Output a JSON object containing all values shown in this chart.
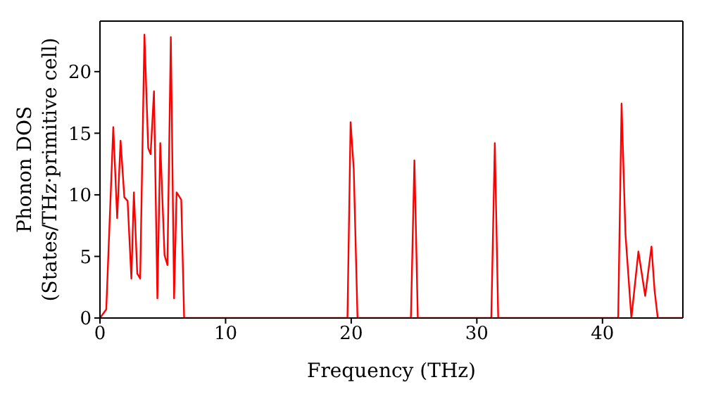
{
  "chart_data": {
    "type": "line",
    "xlabel": "Frequency (THz)",
    "ylabel": "Phonon DOS\n(States/THz·primitive cell)",
    "xlim": [
      0,
      46.4
    ],
    "ylim": [
      0,
      24.1
    ],
    "xticks": [
      0,
      10,
      20,
      30,
      40
    ],
    "yticks": [
      0,
      5,
      10,
      15,
      20
    ],
    "marker": "none",
    "line_style": "solid",
    "series": [
      {
        "color": "#ff0000",
        "x": [
          0,
          0.5,
          1.06,
          1.37,
          1.64,
          1.94,
          2.2,
          2.5,
          2.7,
          2.97,
          3.2,
          3.54,
          3.84,
          4.03,
          4.3,
          4.57,
          4.8,
          5.14,
          5.37,
          5.64,
          5.9,
          6.1,
          6.47,
          6.7,
          19.7,
          19.95,
          20.2,
          20.5,
          24.75,
          25.03,
          25.3,
          31.15,
          31.43,
          31.7,
          41.25,
          41.52,
          41.83,
          42.3,
          42.86,
          43.4,
          43.9,
          44.15,
          44.4,
          46.4
        ],
        "values": [
          0,
          0.7,
          15.5,
          8.1,
          14.4,
          9.8,
          9.5,
          3.2,
          10.2,
          3.6,
          3.2,
          23.0,
          13.8,
          13.3,
          18.4,
          1.6,
          14.2,
          5.1,
          4.3,
          22.8,
          1.6,
          10.2,
          9.6,
          0,
          0,
          15.9,
          12.1,
          0,
          0,
          12.8,
          0,
          0,
          14.2,
          0,
          0,
          17.4,
          6.8,
          0,
          5.4,
          1.8,
          5.8,
          2.2,
          0,
          0
        ]
      }
    ]
  }
}
